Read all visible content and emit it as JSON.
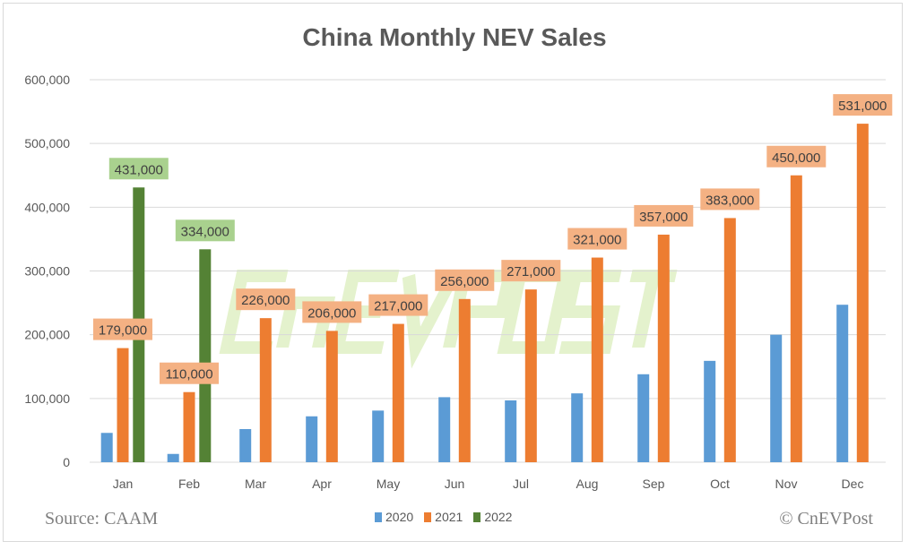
{
  "chart_data": {
    "type": "bar",
    "title": "China Monthly NEV Sales",
    "categories": [
      "Jan",
      "Feb",
      "Mar",
      "Apr",
      "May",
      "Jun",
      "Jul",
      "Aug",
      "Sep",
      "Oct",
      "Nov",
      "Dec"
    ],
    "series": [
      {
        "name": "2020",
        "color": "#5b9bd5",
        "values": [
          46000,
          13000,
          52000,
          72000,
          81000,
          102000,
          97000,
          108000,
          138000,
          159000,
          200000,
          247000
        ],
        "labeled": false
      },
      {
        "name": "2021",
        "color": "#ed7d31",
        "label_bg": "#f4b183",
        "values": [
          179000,
          110000,
          226000,
          206000,
          217000,
          256000,
          271000,
          321000,
          357000,
          383000,
          450000,
          531000
        ],
        "labels": [
          "179,000",
          "110,000",
          "226,000",
          "206,000",
          "217,000",
          "256,000",
          "271,000",
          "321,000",
          "357,000",
          "383,000",
          "450,000",
          "531,000"
        ],
        "labeled": true
      },
      {
        "name": "2022",
        "color": "#548235",
        "label_bg": "#a9d18e",
        "values": [
          431000,
          334000,
          null,
          null,
          null,
          null,
          null,
          null,
          null,
          null,
          null,
          null
        ],
        "labels": [
          "431,000",
          "334,000"
        ],
        "labeled": true
      }
    ],
    "yticks": [
      "0",
      "100,000",
      "200,000",
      "300,000",
      "400,000",
      "500,000",
      "600,000"
    ],
    "ylim": [
      0,
      600000
    ],
    "grid": true,
    "legend": "bottom",
    "xlabel": "",
    "ylabel": ""
  },
  "footer": {
    "source": "Source: CAAM",
    "credit": "© CnEVPost"
  },
  "watermark": "CnEVPOST"
}
